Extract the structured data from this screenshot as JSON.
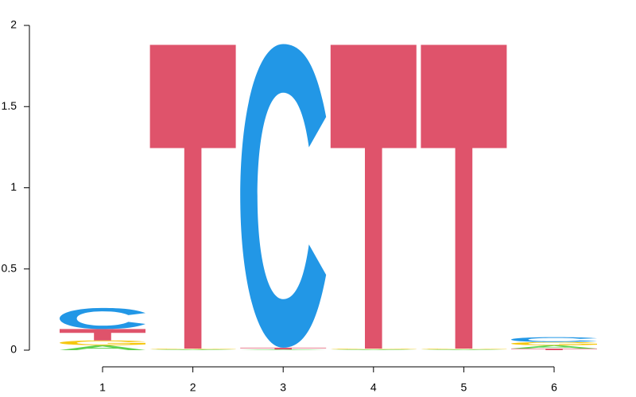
{
  "chart_data": {
    "type": "sequence-logo",
    "title": "",
    "xlabel": "",
    "ylabel": "",
    "ylim": [
      0,
      2
    ],
    "yticks": [
      "0",
      "0.5",
      "1",
      "1.5",
      "2"
    ],
    "xticks": [
      "1",
      "2",
      "3",
      "4",
      "5",
      "6"
    ],
    "colors": {
      "A": "#61d04f",
      "C": "#2297e6",
      "G": "#f5c710",
      "T": "#df536b"
    },
    "positions": [
      {
        "position": "1",
        "letters": [
          {
            "letter": "A",
            "height": 0.03
          },
          {
            "letter": "G",
            "height": 0.03
          },
          {
            "letter": "T",
            "height": 0.07
          },
          {
            "letter": "C",
            "height": 0.13
          }
        ]
      },
      {
        "position": "2",
        "letters": [
          {
            "letter": "A",
            "height": 0.005
          },
          {
            "letter": "G",
            "height": 0.005
          },
          {
            "letter": "T",
            "height": 1.87
          }
        ]
      },
      {
        "position": "3",
        "letters": [
          {
            "letter": "A",
            "height": 0.005
          },
          {
            "letter": "T",
            "height": 0.01
          },
          {
            "letter": "C",
            "height": 1.87
          }
        ]
      },
      {
        "position": "4",
        "letters": [
          {
            "letter": "A",
            "height": 0.005
          },
          {
            "letter": "G",
            "height": 0.005
          },
          {
            "letter": "T",
            "height": 1.87
          }
        ]
      },
      {
        "position": "5",
        "letters": [
          {
            "letter": "A",
            "height": 0.005
          },
          {
            "letter": "G",
            "height": 0.005
          },
          {
            "letter": "T",
            "height": 1.87
          }
        ]
      },
      {
        "position": "6",
        "letters": [
          {
            "letter": "T",
            "height": 0.01
          },
          {
            "letter": "A",
            "height": 0.02
          },
          {
            "letter": "G",
            "height": 0.02
          },
          {
            "letter": "C",
            "height": 0.03
          }
        ]
      }
    ]
  }
}
